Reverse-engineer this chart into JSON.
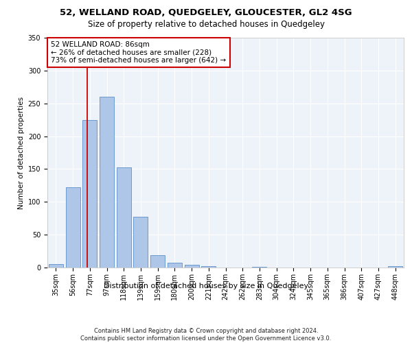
{
  "title1": "52, WELLAND ROAD, QUEDGELEY, GLOUCESTER, GL2 4SG",
  "title2": "Size of property relative to detached houses in Quedgeley",
  "xlabel": "Distribution of detached houses by size in Quedgeley",
  "ylabel": "Number of detached properties",
  "categories": [
    "35sqm",
    "56sqm",
    "77sqm",
    "97sqm",
    "118sqm",
    "139sqm",
    "159sqm",
    "180sqm",
    "200sqm",
    "221sqm",
    "242sqm",
    "262sqm",
    "283sqm",
    "304sqm",
    "324sqm",
    "345sqm",
    "365sqm",
    "386sqm",
    "407sqm",
    "427sqm",
    "448sqm"
  ],
  "values": [
    5,
    122,
    225,
    260,
    153,
    77,
    19,
    7,
    4,
    2,
    0,
    0,
    1,
    0,
    0,
    0,
    0,
    0,
    0,
    0,
    2
  ],
  "bar_color": "#aec6e8",
  "bar_edge_color": "#5b8fc9",
  "vline_x": 1.85,
  "vline_color": "#cc0000",
  "annotation_text": "52 WELLAND ROAD: 86sqm\n← 26% of detached houses are smaller (228)\n73% of semi-detached houses are larger (642) →",
  "annotation_box_color": "#ffffff",
  "annotation_box_edge": "#cc0000",
  "ylim": [
    0,
    350
  ],
  "yticks": [
    0,
    50,
    100,
    150,
    200,
    250,
    300,
    350
  ],
  "background_color": "#eef2f9",
  "footer": "Contains HM Land Registry data © Crown copyright and database right 2024.\nContains public sector information licensed under the Open Government Licence v3.0.",
  "title1_fontsize": 9.5,
  "title2_fontsize": 8.5,
  "xlabel_fontsize": 8,
  "ylabel_fontsize": 7.5,
  "tick_fontsize": 7,
  "annotation_fontsize": 7.5,
  "footer_fontsize": 6
}
